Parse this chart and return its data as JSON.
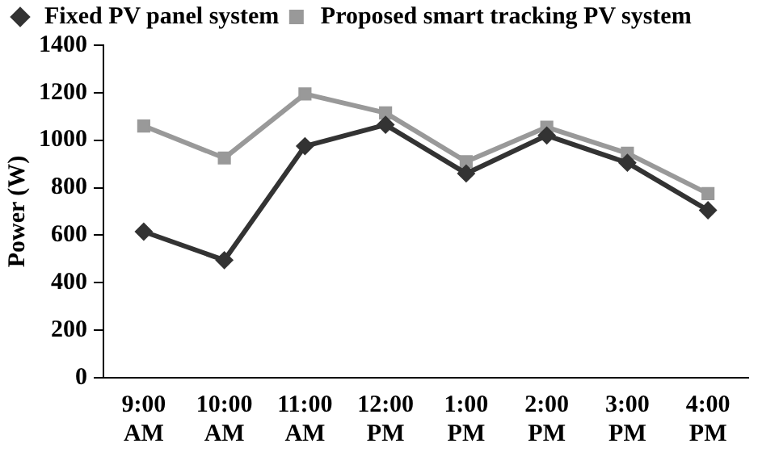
{
  "chart_data": {
    "type": "line",
    "ylabel": "Power (W)",
    "categories": [
      "9:00 AM",
      "10:00 AM",
      "11:00 AM",
      "12:00 PM",
      "1:00 PM",
      "2:00 PM",
      "3:00 PM",
      "4:00 PM"
    ],
    "series": [
      {
        "name": "Fixed PV panel system",
        "color": "#333333",
        "marker": "diamond",
        "values": [
          615,
          495,
          975,
          1065,
          860,
          1020,
          905,
          705
        ]
      },
      {
        "name": "Proposed smart tracking PV system",
        "color": "#999999",
        "marker": "square",
        "values": [
          1060,
          925,
          1195,
          1115,
          910,
          1055,
          945,
          775
        ]
      }
    ],
    "ylim": [
      0,
      1400
    ],
    "yticks": [
      0,
      200,
      400,
      600,
      800,
      1000,
      1200,
      1400
    ],
    "grid": false,
    "legend": "top",
    "line_style": "solid"
  }
}
